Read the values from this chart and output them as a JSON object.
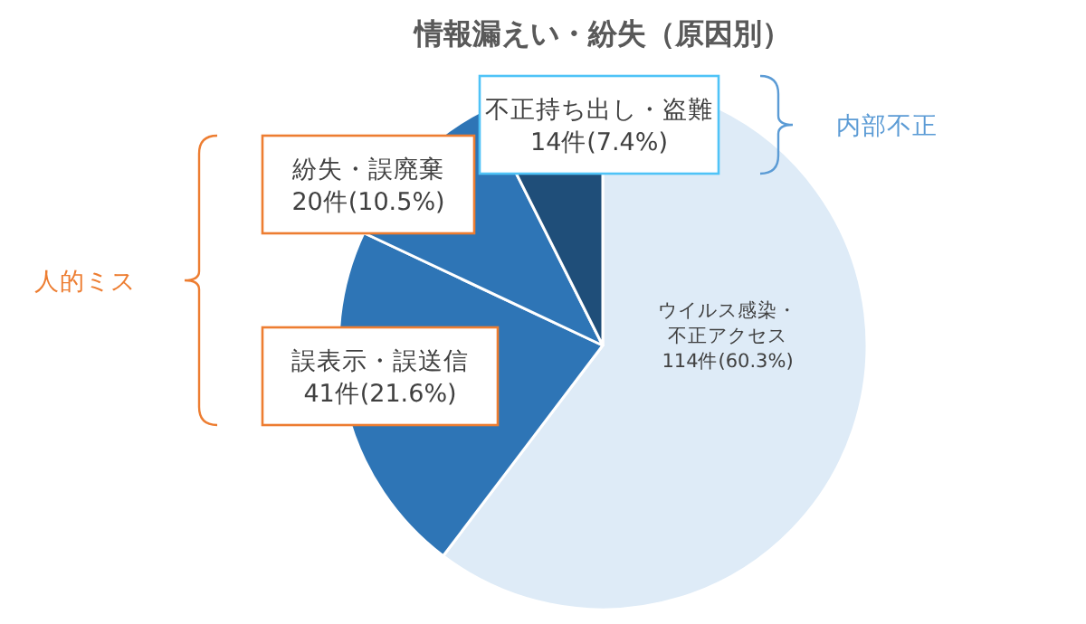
{
  "chart_data": {
    "type": "pie",
    "title": "情報漏えい・紛失（原因別）",
    "categories": [
      "ウイルス感染・不正アクセス",
      "誤表示・誤送信",
      "紛失・誤廃棄",
      "不正持ち出し・盗難"
    ],
    "values": [
      114,
      41,
      20,
      14
    ],
    "value_labels": [
      "114件(60.3%)",
      "41件(21.6%)",
      "20件(10.5%)",
      "14件(7.4%)"
    ],
    "colors": [
      "#deebf7",
      "#2e75b6",
      "#2e75b6",
      "#1f4e79"
    ],
    "annotations": [
      "人的ミス",
      "内部不正"
    ],
    "legend": false
  }
}
